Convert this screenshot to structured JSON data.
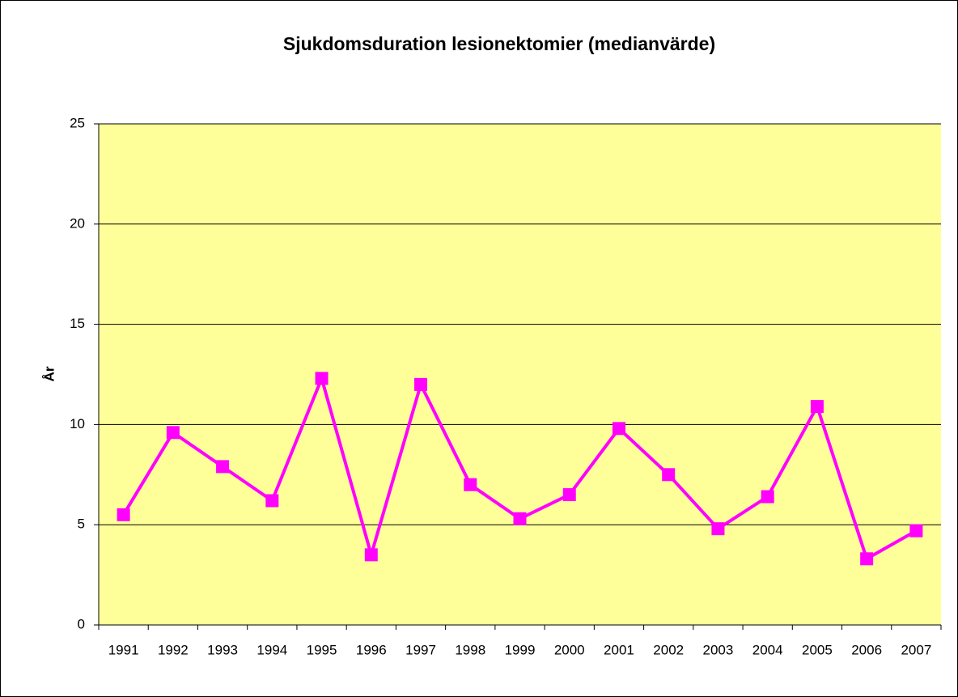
{
  "chart_data": {
    "type": "line",
    "title": "Sjukdomsduration lesionektomier (medianvärde)",
    "y_label": "År",
    "categories": [
      "1991",
      "1992",
      "1993",
      "1994",
      "1995",
      "1996",
      "1997",
      "1998",
      "1999",
      "2000",
      "2001",
      "2002",
      "2003",
      "2004",
      "2005",
      "2006",
      "2007"
    ],
    "series": [
      {
        "name": "Sjukdomsduration",
        "color": "#ff00ff",
        "values": [
          5.5,
          9.6,
          7.9,
          6.2,
          12.3,
          3.5,
          12.0,
          7.0,
          5.3,
          6.5,
          9.8,
          7.5,
          4.8,
          6.4,
          10.9,
          3.3,
          4.7
        ]
      }
    ],
    "ylim": [
      0,
      25
    ],
    "yticks": [
      0,
      5,
      10,
      15,
      20,
      25
    ],
    "grid": true,
    "plot_background": "#ffff99"
  }
}
